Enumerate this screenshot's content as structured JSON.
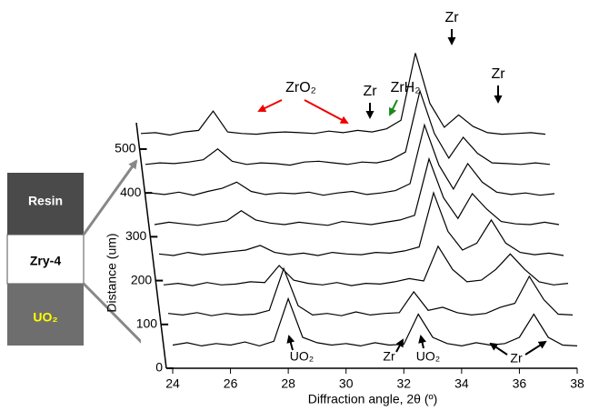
{
  "chart_data": {
    "type": "waterfall",
    "x": [
      24,
      24.5,
      25,
      25.5,
      26,
      26.5,
      27,
      27.5,
      28,
      28.5,
      29,
      29.5,
      30,
      30.5,
      31,
      31.5,
      32,
      32.5,
      33,
      33.5,
      34,
      34.5,
      35,
      35.5,
      36,
      36.5,
      37,
      37.5,
      38
    ],
    "series": [
      {
        "values": [
          1,
          1.3,
          0.9,
          1.2,
          1,
          1.4,
          0.9,
          1.5,
          7,
          2,
          1.3,
          1,
          1.2,
          0.9,
          1.3,
          1,
          1.1,
          5,
          2,
          1.2,
          0.9,
          1.3,
          1,
          1.2,
          2,
          5,
          2,
          1,
          0.9
        ]
      },
      {
        "values": [
          1.2,
          1,
          1.3,
          0.9,
          1.2,
          1,
          1.1,
          1.6,
          7,
          2.2,
          1,
          1.2,
          0.9,
          1.4,
          1,
          1.2,
          1.3,
          4,
          1.6,
          2,
          1.3,
          1,
          1.2,
          2,
          2.5,
          6,
          3,
          1.1,
          1
        ]
      },
      {
        "values": [
          1,
          1.2,
          0.9,
          1.3,
          1,
          1.1,
          1.4,
          1.3,
          3.5,
          1.6,
          1.2,
          1,
          1.3,
          0.9,
          1.2,
          1.1,
          1.4,
          1.8,
          1.5,
          6,
          3,
          1.4,
          1.6,
          3,
          5,
          3,
          1.4,
          1,
          1.2
        ]
      },
      {
        "values": [
          1.1,
          0.9,
          1.3,
          1,
          1.2,
          1.4,
          1.6,
          2.2,
          1.3,
          1,
          1.2,
          0.9,
          1.3,
          1.1,
          1,
          1.3,
          1.2,
          1.5,
          2,
          9,
          4,
          1.6,
          2.5,
          5.5,
          2.5,
          1.3,
          1,
          1.2,
          0.9
        ]
      },
      {
        "values": [
          1,
          1.3,
          1.1,
          0.9,
          1.2,
          1.5,
          2.8,
          1.6,
          1.2,
          1,
          1.3,
          1.1,
          0.9,
          1.4,
          1.2,
          1,
          1.3,
          1.6,
          2.2,
          9.5,
          4.5,
          1.8,
          5,
          3,
          1.4,
          1.1,
          1,
          1.3,
          1
        ]
      },
      {
        "values": [
          1.2,
          1,
          1.3,
          0.9,
          1.4,
          1.8,
          2.6,
          1.4,
          1,
          1.2,
          1.1,
          1.3,
          0.9,
          1.2,
          1.4,
          1,
          1.2,
          1.5,
          2.4,
          10,
          4.8,
          1.7,
          5,
          2.6,
          1.3,
          1,
          1.2,
          0.9,
          1.1
        ]
      },
      {
        "values": [
          1,
          1.2,
          1.1,
          1.3,
          1.6,
          3,
          1.4,
          1,
          1.2,
          1.1,
          0.9,
          1.3,
          1.4,
          1.2,
          1,
          1.3,
          1.2,
          1.6,
          2.6,
          10.5,
          5,
          1.8,
          4.5,
          2.4,
          1.2,
          1.1,
          1,
          1.2,
          1
        ]
      },
      {
        "values": [
          1.1,
          1.2,
          0.9,
          1.3,
          1.5,
          4,
          1.3,
          1.1,
          1,
          1.2,
          1.3,
          1.2,
          1.1,
          1.4,
          1.2,
          1.5,
          1.3,
          1.7,
          2.8,
          11.5,
          5,
          1.9,
          3.5,
          2,
          1.2,
          1,
          1.1,
          1.2,
          1
        ]
      }
    ],
    "xlim": [
      24,
      38
    ],
    "xticks": [
      24,
      26,
      28,
      30,
      32,
      34,
      36,
      38
    ],
    "ylim": [
      0,
      560
    ],
    "yticks": [
      0,
      100,
      200,
      300,
      400,
      500
    ],
    "xlabel": "Diffraction angle, 2θ (º)",
    "ylabel": "Distance (um)",
    "annotations": [
      "Zr",
      "Zr",
      "ZrO₂",
      "Zr",
      "ZrH₂",
      "UO₂",
      "Zr",
      "UO₂",
      "Zr"
    ]
  },
  "inset": {
    "layers": [
      "Resin",
      "Zry-4",
      "UO₂"
    ]
  }
}
